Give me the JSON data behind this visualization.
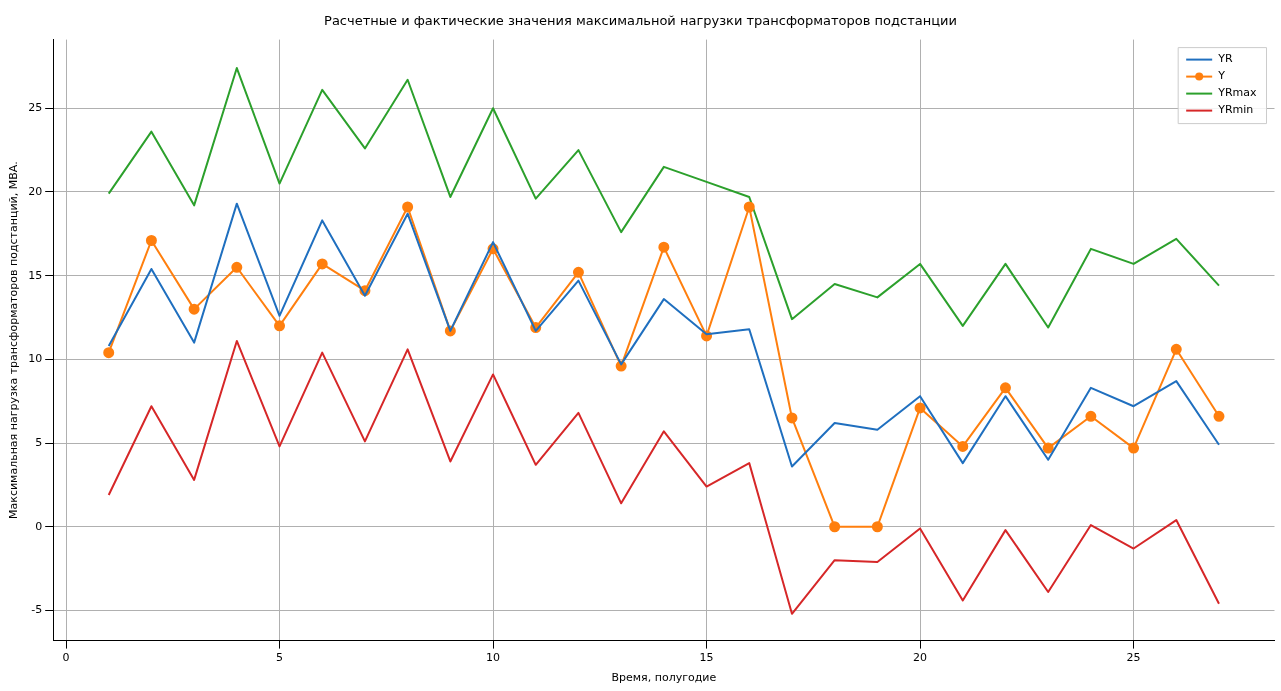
{
  "chart_data": {
    "type": "line",
    "title": "Расчетные и фактические значения максимальной нагрузки трансформаторов подстанции",
    "xlabel": "Время, полугодие",
    "ylabel": "Максимальная нагрузка трансформаторов подстанций, МВА.",
    "x": [
      1,
      2,
      3,
      4,
      5,
      6,
      7,
      8,
      9,
      10,
      11,
      12,
      13,
      14,
      15,
      16,
      17,
      18,
      19,
      20,
      21,
      22,
      23,
      24,
      25,
      26,
      27
    ],
    "series": [
      {
        "name": "YR",
        "color": "#1f6fbf",
        "marker": "none",
        "values": [
          10.8,
          15.4,
          11.0,
          19.3,
          12.6,
          18.3,
          13.8,
          18.7,
          11.7,
          17.0,
          11.7,
          14.7,
          9.7,
          13.6,
          11.5,
          11.8,
          3.6,
          6.2,
          5.8,
          7.8,
          3.8,
          7.8,
          4.0,
          8.3,
          7.2,
          8.7,
          4.9
        ]
      },
      {
        "name": "Y",
        "color": "#ff7f0e",
        "marker": "circle",
        "values": [
          10.4,
          17.1,
          13.0,
          15.5,
          12.0,
          15.7,
          14.1,
          19.1,
          11.7,
          16.6,
          11.9,
          15.2,
          9.6,
          16.7,
          11.4,
          19.1,
          6.5,
          0,
          0,
          7.1,
          4.8,
          8.3,
          4.7,
          6.6,
          4.7,
          10.6,
          6.6
        ]
      },
      {
        "name": "YRmax",
        "color": "#2ca02c",
        "marker": "none",
        "values": [
          19.9,
          23.6,
          19.2,
          27.4,
          20.5,
          26.1,
          22.6,
          26.7,
          19.7,
          25.0,
          19.6,
          22.5,
          17.6,
          21.5,
          20.6,
          19.7,
          12.4,
          14.5,
          13.7,
          15.7,
          12.0,
          15.7,
          11.9,
          16.6,
          15.7,
          17.2,
          14.4
        ]
      },
      {
        "name": "YRmin",
        "color": "#d62728",
        "marker": "none",
        "values": [
          1.9,
          7.2,
          2.8,
          11.1,
          4.8,
          10.4,
          5.1,
          10.6,
          3.9,
          9.1,
          3.7,
          6.8,
          1.4,
          5.7,
          2.4,
          3.8,
          -5.2,
          -2.0,
          -2.1,
          -0.1,
          -4.4,
          -0.2,
          -3.9,
          0.1,
          -1.3,
          0.4,
          -4.6
        ]
      }
    ],
    "xlim": [
      -0.3,
      28.3
    ],
    "xticks": [
      0,
      5,
      10,
      15,
      20,
      25
    ],
    "ylim": [
      -6.8,
      29.1
    ],
    "yticks": [
      -5,
      0,
      5,
      10,
      15,
      20,
      25
    ],
    "grid": true,
    "legend": "top right",
    "line_style": "solid"
  }
}
